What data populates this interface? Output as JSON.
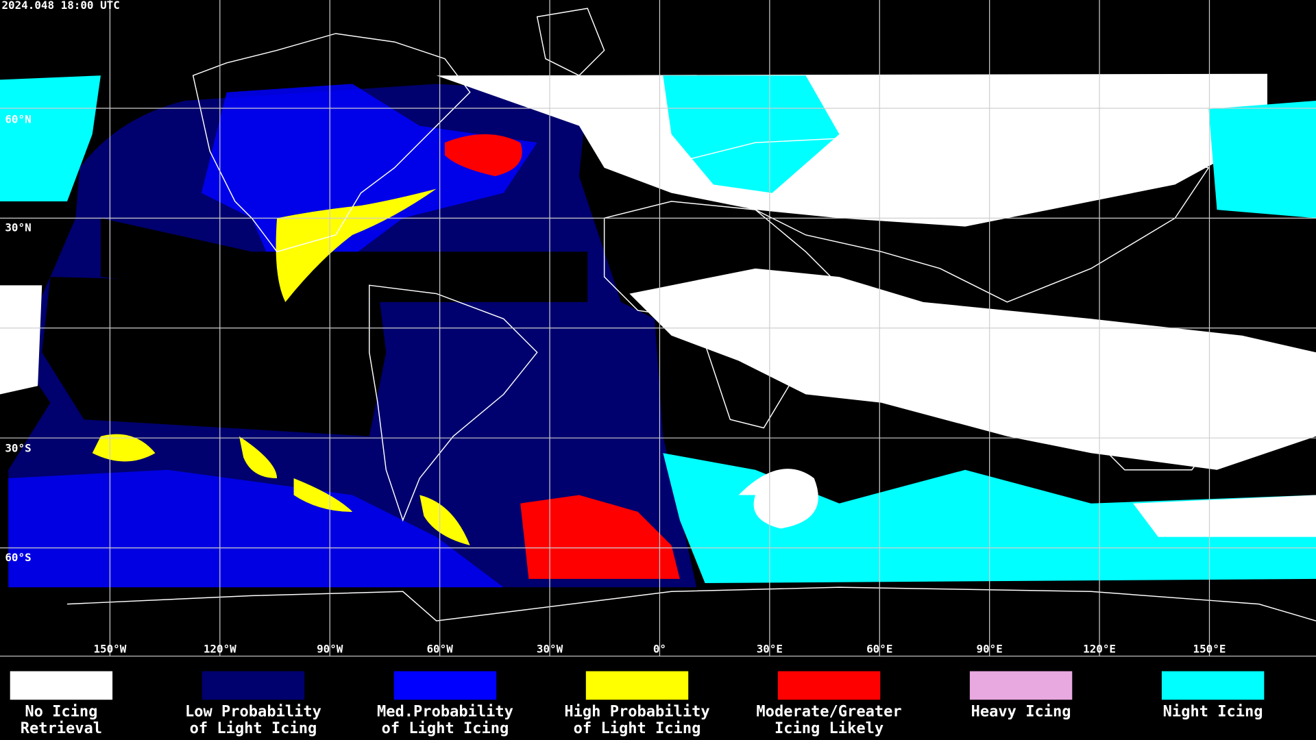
{
  "header": {
    "timestamp": "2024.048 18:00 UTC"
  },
  "map": {
    "longitude_labels": [
      "150°W",
      "120°W",
      "90°W",
      "60°W",
      "30°W",
      "0°",
      "30°E",
      "60°E",
      "90°E",
      "120°E",
      "150°E"
    ],
    "latitude_labels": [
      "60°N",
      "30°N",
      "30°S",
      "60°S"
    ]
  },
  "legend": [
    {
      "lines": [
        "No Icing",
        "Retrieval"
      ],
      "color": "#ffffff"
    },
    {
      "lines": [
        "Low Probability",
        "of Light Icing"
      ],
      "color": "#00006e"
    },
    {
      "lines": [
        "Med.Probability",
        "of Light Icing"
      ],
      "color": "#0000ff"
    },
    {
      "lines": [
        "High Probability",
        "of Light Icing"
      ],
      "color": "#ffff00"
    },
    {
      "lines": [
        "Moderate/Greater",
        "Icing Likely"
      ],
      "color": "#ff0000"
    },
    {
      "lines": [
        "Heavy Icing"
      ],
      "color": "#e8a8e0"
    },
    {
      "lines": [
        "Night Icing"
      ],
      "color": "#00ffff"
    }
  ]
}
